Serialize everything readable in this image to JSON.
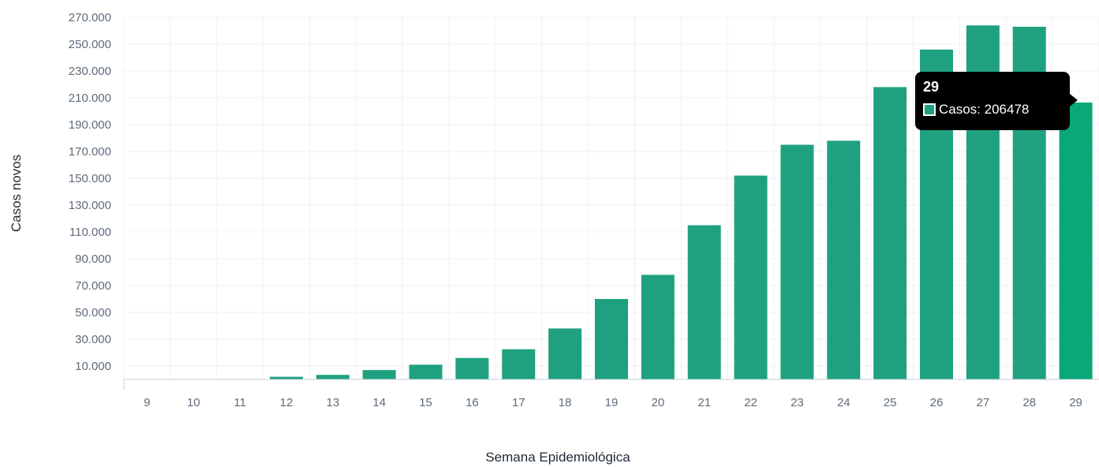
{
  "chart_data": {
    "type": "bar",
    "xlabel": "Semana Epidemiológica",
    "ylabel": "Casos novos",
    "categories": [
      "9",
      "10",
      "11",
      "12",
      "13",
      "14",
      "15",
      "16",
      "17",
      "18",
      "19",
      "20",
      "21",
      "22",
      "23",
      "24",
      "25",
      "26",
      "27",
      "28",
      "29"
    ],
    "series": [
      {
        "name": "Casos",
        "values": [
          0,
          0,
          300,
          2000,
          3400,
          7000,
          11000,
          16000,
          22500,
          38000,
          60000,
          78000,
          115000,
          152000,
          175000,
          178000,
          218000,
          246000,
          264000,
          263000,
          206478
        ]
      }
    ],
    "y_ticks": [
      "10.000",
      "30.000",
      "50.000",
      "70.000",
      "90.000",
      "110.000",
      "130.000",
      "150.000",
      "170.000",
      "190.000",
      "210.000",
      "230.000",
      "250.000",
      "270.000"
    ],
    "ylim": [
      0,
      270000
    ],
    "grid": true,
    "bar_color": "#1fa17f",
    "highlight_color": "#0aa878"
  },
  "tooltip": {
    "title": "29",
    "label": "Casos: 206478"
  }
}
